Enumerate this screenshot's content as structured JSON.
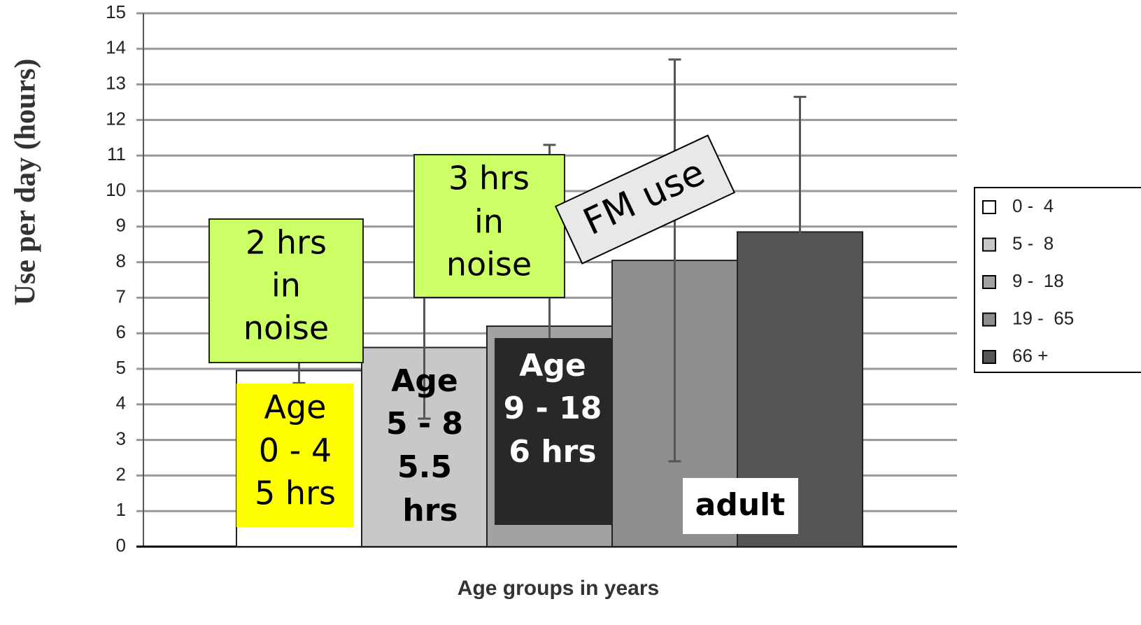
{
  "chart_data": {
    "type": "bar",
    "xlabel": "Age groups in years",
    "ylabel": "Use per day (hours)",
    "categories": [
      null
    ],
    "series": [
      {
        "name": "0 -  4",
        "color": "#ffffff",
        "values": [
          4.95
        ],
        "errors": [
          0.35
        ]
      },
      {
        "name": "5 -  8",
        "color": "#c8c8c8",
        "values": [
          5.6
        ],
        "errors": [
          2
        ]
      },
      {
        "name": "9 -  18",
        "color": "#a2a2a4",
        "values": [
          6.2
        ],
        "errors": [
          5.1
        ]
      },
      {
        "name": "19 -  65",
        "color": "#8e8e91",
        "values": [
          8.05
        ],
        "errors": [
          5.65
        ]
      },
      {
        "name": "66 +",
        "color": "#555558",
        "values": [
          8.85
        ],
        "errors": [
          3.8
        ]
      }
    ],
    "ylim": [
      0,
      15
    ],
    "yticks": [
      0,
      1,
      2,
      3,
      4,
      5,
      6,
      7,
      8,
      9,
      10,
      11,
      12,
      13,
      14,
      15
    ],
    "grid": true,
    "legend": "right",
    "annotations": [
      {
        "text": [
          "2 hrs",
          "in",
          "noise"
        ]
      },
      {
        "text": [
          "3 hrs",
          "in",
          "noise"
        ]
      },
      {
        "text": [
          "FM use"
        ]
      },
      {
        "text": [
          "Age",
          "0 - 4",
          "5 hrs"
        ]
      },
      {
        "text": [
          "Age",
          "5 - 8",
          "5.5",
          "hrs"
        ]
      },
      {
        "text": [
          "Age",
          "9 - 18",
          "6 hrs"
        ]
      },
      {
        "text": [
          "adult"
        ]
      }
    ]
  }
}
